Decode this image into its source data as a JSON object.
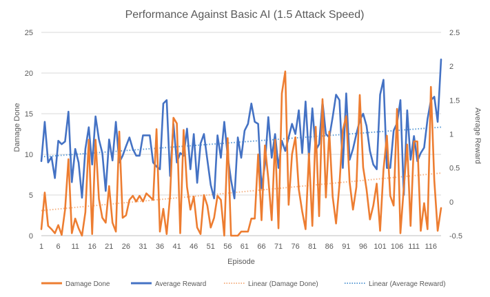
{
  "chart_data": {
    "type": "line",
    "title": "Performance Against Basic AI (1.5 Attack Speed)",
    "xlabel": "Episode",
    "ylabel_left": "Damage Done",
    "ylabel_right": "Average Reward",
    "ylim_left": [
      0,
      25
    ],
    "ylim_right": [
      -0.5,
      2.5
    ],
    "yticks_left": [
      "0",
      "5",
      "10",
      "15",
      "20",
      "25"
    ],
    "yticks_right": [
      "-0.5",
      "0",
      "0.5",
      "1",
      "1.5",
      "2",
      "2.5"
    ],
    "xticks": [
      "1",
      "6",
      "11",
      "16",
      "21",
      "26",
      "31",
      "36",
      "41",
      "46",
      "51",
      "56",
      "61",
      "66",
      "71",
      "76",
      "81",
      "86",
      "91",
      "96",
      "101",
      "106",
      "111",
      "116"
    ],
    "x_range": [
      1,
      119
    ],
    "grid": true,
    "legend_position": "bottom",
    "series": [
      {
        "name": "Damage Done",
        "axis": "left",
        "color": "#ED7D31",
        "values": [
          0.8,
          5.3,
          1.2,
          0.8,
          0.3,
          1.3,
          0.1,
          3.2,
          9.4,
          0.3,
          2.1,
          0.9,
          0,
          2.9,
          11.8,
          0.2,
          11.8,
          4.5,
          2.2,
          1.6,
          6.1,
          1.6,
          0.5,
          12.8,
          2.2,
          2.5,
          4.4,
          4.9,
          4.2,
          4.9,
          4.2,
          5.2,
          4.8,
          4.4,
          13.1,
          0.5,
          3.3,
          0.2,
          4.9,
          14.5,
          13.8,
          0.3,
          13.0,
          6.0,
          3.2,
          4.8,
          1.0,
          0.2,
          5.0,
          3.7,
          1.0,
          2.2,
          4.9,
          4.4,
          0,
          12.0,
          0,
          0,
          0,
          0.5,
          0.5,
          0.5,
          2.1,
          2.1,
          10.0,
          1.9,
          11.1,
          7.0,
          1.9,
          11.8,
          0.9,
          17.5,
          20.2,
          3.8,
          10.0,
          12.1,
          5.7,
          3.0,
          0.8,
          10.1,
          1.2,
          13.4,
          2.4,
          16.8,
          4.7,
          12.8,
          4.8,
          1.5,
          6.3,
          13.0,
          14.7,
          6.6,
          3.2,
          6.0,
          17.3,
          8.4,
          5.7,
          2.0,
          3.7,
          6.4,
          0.6,
          8.1,
          12.3,
          4.9,
          3.7,
          15.6,
          0.3,
          5.9,
          11.2,
          1.2,
          11.6,
          11.6,
          0.6,
          4.0,
          0.8,
          18.3,
          6.8,
          0.6,
          3.4
        ],
        "trend_color": "#F4B183"
      },
      {
        "name": "Average Reward",
        "axis": "right",
        "color": "#4472C4",
        "values": [
          0.6,
          1.18,
          0.58,
          0.66,
          0.35,
          0.9,
          0.85,
          0.89,
          1.33,
          0.29,
          0.78,
          0.58,
          0.06,
          0.78,
          1.1,
          0.55,
          1.26,
          0.92,
          0.72,
          0.16,
          0.92,
          0.61,
          1.18,
          0.58,
          0.68,
          0.82,
          0.95,
          0.78,
          0.68,
          0.68,
          0.98,
          0.98,
          0.98,
          0.58,
          0.52,
          0.48,
          1.45,
          1.5,
          0.38,
          1.15,
          0.58,
          0.72,
          0.68,
          1.08,
          0.48,
          1.0,
          0.28,
          0.86,
          1.0,
          0.62,
          0.25,
          0.05,
          0.98,
          0.65,
          1.18,
          0.68,
          0.32,
          0.05,
          0.95,
          0.65,
          1.05,
          1.15,
          1.45,
          1.18,
          1.15,
          0.2,
          0.55,
          1.25,
          0.65,
          1.0,
          0.5,
          0.9,
          0.75,
          0.95,
          1.15,
          1.0,
          1.35,
          0.72,
          1.48,
          0.65,
          1.38,
          0.76,
          0.85,
          1.48,
          1.0,
          0.95,
          1.25,
          1.58,
          1.5,
          0.5,
          1.6,
          0.62,
          0.78,
          1.0,
          1.2,
          1.3,
          1.12,
          0.75,
          0.55,
          0.48,
          1.58,
          1.8,
          0.5,
          0.5,
          1.05,
          1.16,
          1.5,
          0.1,
          1.35,
          0.62,
          0.97,
          0.6,
          0.72,
          0.8,
          1.22,
          1.5,
          1.55,
          1.18,
          2.1
        ],
        "trend_color": "#5B9BD5"
      }
    ],
    "legend": [
      "Damage Done",
      "Average Reward",
      "Linear (Damage Done)",
      "Linear (Average Reward)"
    ]
  }
}
